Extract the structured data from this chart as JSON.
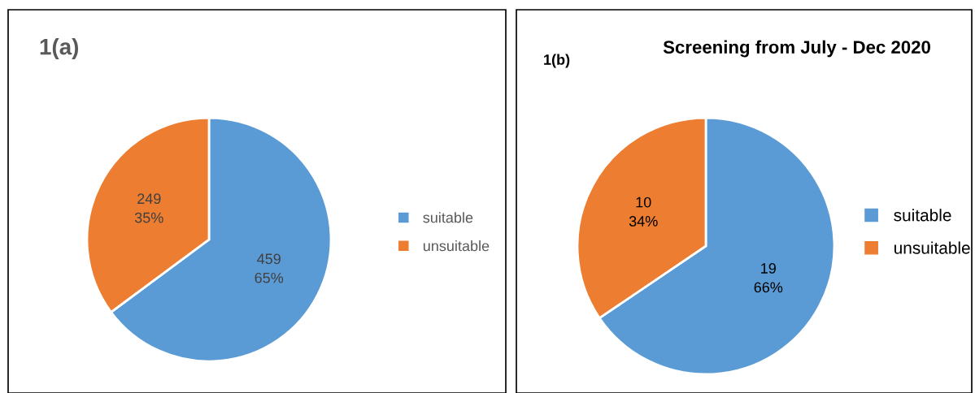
{
  "chart_data": [
    {
      "type": "pie",
      "title": "1(a)",
      "categories": [
        "suitable",
        "unsuitable"
      ],
      "values": [
        459,
        249
      ],
      "colors": [
        "#5b9bd5",
        "#ed7d31"
      ],
      "value_labels": [
        "459\n65%",
        "249\n35%"
      ],
      "legend": "right"
    },
    {
      "type": "pie",
      "title": "Screening from July - Dec 2020",
      "annotations": [
        "1(b)"
      ],
      "categories": [
        "suitable",
        "unsuitable"
      ],
      "values": [
        19,
        10
      ],
      "colors": [
        "#5b9bd5",
        "#ed7d31"
      ],
      "value_labels": [
        "19\n66%",
        "10\n34%"
      ],
      "legend": "right"
    }
  ]
}
